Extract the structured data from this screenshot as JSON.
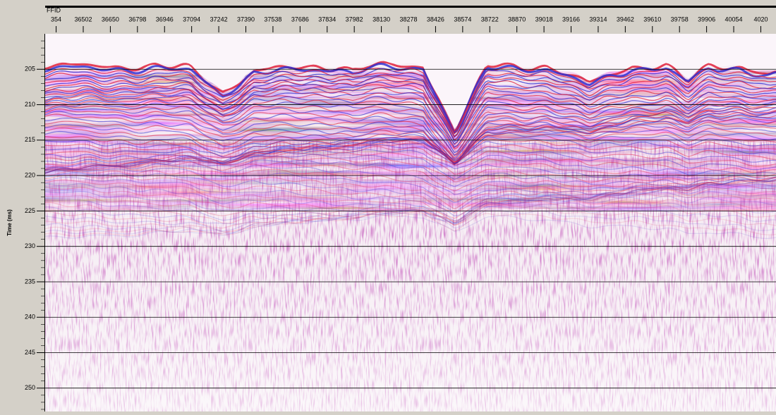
{
  "chart_data": {
    "type": "seismic",
    "x_label": "FFID",
    "y_label": "Time (ms)",
    "xlim": [
      36294,
      40285
    ],
    "xticks": [
      {
        "value": 36354,
        "label": "354"
      },
      36502,
      36650,
      36798,
      36946,
      37094,
      37242,
      37390,
      37538,
      37686,
      37834,
      37982,
      38130,
      38278,
      38426,
      38574,
      38722,
      38870,
      39018,
      39166,
      39314,
      39462,
      39610,
      39758,
      39906,
      40054,
      {
        "value": 40202,
        "label": "4020"
      }
    ],
    "ylim": [
      200,
      253.3
    ],
    "yticks": [
      205,
      210,
      215,
      220,
      225,
      230,
      235,
      240,
      245,
      250
    ],
    "grid": true
  }
}
